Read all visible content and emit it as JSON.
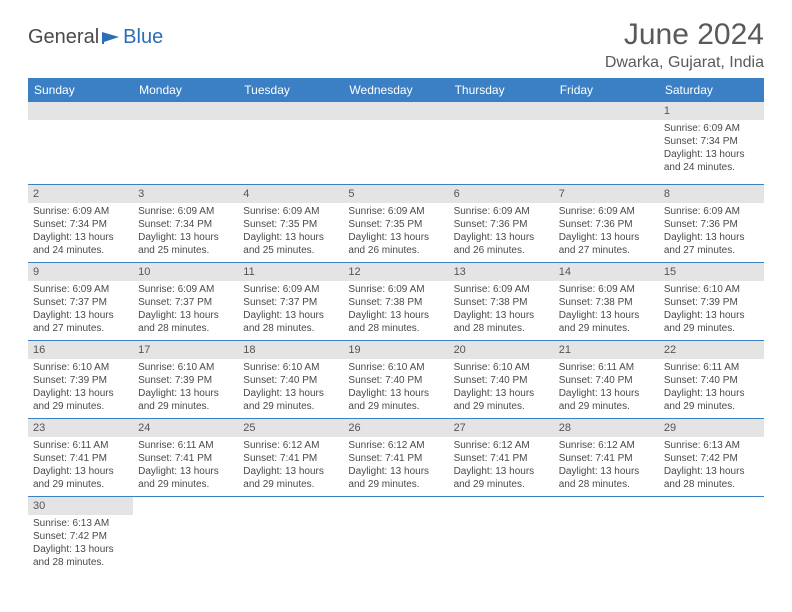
{
  "logo": {
    "part1": "General",
    "part2": "Blue"
  },
  "title": "June 2024",
  "location": "Dwarka, Gujarat, India",
  "header_bg": "#3b7fc4",
  "daynum_bg": "#e4e4e4",
  "border_color": "#3b7fc4",
  "weekdays": [
    "Sunday",
    "Monday",
    "Tuesday",
    "Wednesday",
    "Thursday",
    "Friday",
    "Saturday"
  ],
  "weeks": [
    [
      null,
      null,
      null,
      null,
      null,
      null,
      {
        "n": "1",
        "sr": "Sunrise: 6:09 AM",
        "ss": "Sunset: 7:34 PM",
        "d1": "Daylight: 13 hours",
        "d2": "and 24 minutes."
      }
    ],
    [
      {
        "n": "2",
        "sr": "Sunrise: 6:09 AM",
        "ss": "Sunset: 7:34 PM",
        "d1": "Daylight: 13 hours",
        "d2": "and 24 minutes."
      },
      {
        "n": "3",
        "sr": "Sunrise: 6:09 AM",
        "ss": "Sunset: 7:34 PM",
        "d1": "Daylight: 13 hours",
        "d2": "and 25 minutes."
      },
      {
        "n": "4",
        "sr": "Sunrise: 6:09 AM",
        "ss": "Sunset: 7:35 PM",
        "d1": "Daylight: 13 hours",
        "d2": "and 25 minutes."
      },
      {
        "n": "5",
        "sr": "Sunrise: 6:09 AM",
        "ss": "Sunset: 7:35 PM",
        "d1": "Daylight: 13 hours",
        "d2": "and 26 minutes."
      },
      {
        "n": "6",
        "sr": "Sunrise: 6:09 AM",
        "ss": "Sunset: 7:36 PM",
        "d1": "Daylight: 13 hours",
        "d2": "and 26 minutes."
      },
      {
        "n": "7",
        "sr": "Sunrise: 6:09 AM",
        "ss": "Sunset: 7:36 PM",
        "d1": "Daylight: 13 hours",
        "d2": "and 27 minutes."
      },
      {
        "n": "8",
        "sr": "Sunrise: 6:09 AM",
        "ss": "Sunset: 7:36 PM",
        "d1": "Daylight: 13 hours",
        "d2": "and 27 minutes."
      }
    ],
    [
      {
        "n": "9",
        "sr": "Sunrise: 6:09 AM",
        "ss": "Sunset: 7:37 PM",
        "d1": "Daylight: 13 hours",
        "d2": "and 27 minutes."
      },
      {
        "n": "10",
        "sr": "Sunrise: 6:09 AM",
        "ss": "Sunset: 7:37 PM",
        "d1": "Daylight: 13 hours",
        "d2": "and 28 minutes."
      },
      {
        "n": "11",
        "sr": "Sunrise: 6:09 AM",
        "ss": "Sunset: 7:37 PM",
        "d1": "Daylight: 13 hours",
        "d2": "and 28 minutes."
      },
      {
        "n": "12",
        "sr": "Sunrise: 6:09 AM",
        "ss": "Sunset: 7:38 PM",
        "d1": "Daylight: 13 hours",
        "d2": "and 28 minutes."
      },
      {
        "n": "13",
        "sr": "Sunrise: 6:09 AM",
        "ss": "Sunset: 7:38 PM",
        "d1": "Daylight: 13 hours",
        "d2": "and 28 minutes."
      },
      {
        "n": "14",
        "sr": "Sunrise: 6:09 AM",
        "ss": "Sunset: 7:38 PM",
        "d1": "Daylight: 13 hours",
        "d2": "and 29 minutes."
      },
      {
        "n": "15",
        "sr": "Sunrise: 6:10 AM",
        "ss": "Sunset: 7:39 PM",
        "d1": "Daylight: 13 hours",
        "d2": "and 29 minutes."
      }
    ],
    [
      {
        "n": "16",
        "sr": "Sunrise: 6:10 AM",
        "ss": "Sunset: 7:39 PM",
        "d1": "Daylight: 13 hours",
        "d2": "and 29 minutes."
      },
      {
        "n": "17",
        "sr": "Sunrise: 6:10 AM",
        "ss": "Sunset: 7:39 PM",
        "d1": "Daylight: 13 hours",
        "d2": "and 29 minutes."
      },
      {
        "n": "18",
        "sr": "Sunrise: 6:10 AM",
        "ss": "Sunset: 7:40 PM",
        "d1": "Daylight: 13 hours",
        "d2": "and 29 minutes."
      },
      {
        "n": "19",
        "sr": "Sunrise: 6:10 AM",
        "ss": "Sunset: 7:40 PM",
        "d1": "Daylight: 13 hours",
        "d2": "and 29 minutes."
      },
      {
        "n": "20",
        "sr": "Sunrise: 6:10 AM",
        "ss": "Sunset: 7:40 PM",
        "d1": "Daylight: 13 hours",
        "d2": "and 29 minutes."
      },
      {
        "n": "21",
        "sr": "Sunrise: 6:11 AM",
        "ss": "Sunset: 7:40 PM",
        "d1": "Daylight: 13 hours",
        "d2": "and 29 minutes."
      },
      {
        "n": "22",
        "sr": "Sunrise: 6:11 AM",
        "ss": "Sunset: 7:40 PM",
        "d1": "Daylight: 13 hours",
        "d2": "and 29 minutes."
      }
    ],
    [
      {
        "n": "23",
        "sr": "Sunrise: 6:11 AM",
        "ss": "Sunset: 7:41 PM",
        "d1": "Daylight: 13 hours",
        "d2": "and 29 minutes."
      },
      {
        "n": "24",
        "sr": "Sunrise: 6:11 AM",
        "ss": "Sunset: 7:41 PM",
        "d1": "Daylight: 13 hours",
        "d2": "and 29 minutes."
      },
      {
        "n": "25",
        "sr": "Sunrise: 6:12 AM",
        "ss": "Sunset: 7:41 PM",
        "d1": "Daylight: 13 hours",
        "d2": "and 29 minutes."
      },
      {
        "n": "26",
        "sr": "Sunrise: 6:12 AM",
        "ss": "Sunset: 7:41 PM",
        "d1": "Daylight: 13 hours",
        "d2": "and 29 minutes."
      },
      {
        "n": "27",
        "sr": "Sunrise: 6:12 AM",
        "ss": "Sunset: 7:41 PM",
        "d1": "Daylight: 13 hours",
        "d2": "and 29 minutes."
      },
      {
        "n": "28",
        "sr": "Sunrise: 6:12 AM",
        "ss": "Sunset: 7:41 PM",
        "d1": "Daylight: 13 hours",
        "d2": "and 28 minutes."
      },
      {
        "n": "29",
        "sr": "Sunrise: 6:13 AM",
        "ss": "Sunset: 7:42 PM",
        "d1": "Daylight: 13 hours",
        "d2": "and 28 minutes."
      }
    ],
    [
      {
        "n": "30",
        "sr": "Sunrise: 6:13 AM",
        "ss": "Sunset: 7:42 PM",
        "d1": "Daylight: 13 hours",
        "d2": "and 28 minutes."
      },
      null,
      null,
      null,
      null,
      null,
      null
    ]
  ]
}
